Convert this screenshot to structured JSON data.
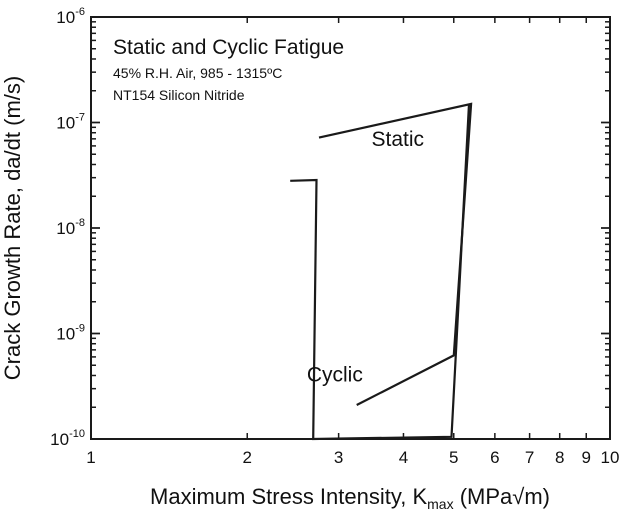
{
  "chart_data": {
    "type": "area",
    "title": "Static and Cyclic Fatigue",
    "subtitle_lines": [
      "45% R.H. Air, 985 - 1315ºC",
      "NT154 Silicon Nitride"
    ],
    "ylabel": "Crack Growth Rate, da/dt (m/s)",
    "xlabel": {
      "prefix": "Maximum Stress Intensity, K",
      "subscript": "max",
      "unit": " (MPa√m)"
    },
    "x_scale": "log",
    "y_scale": "log",
    "xlim": [
      1,
      10
    ],
    "ylim": [
      1e-10,
      1e-06
    ],
    "x_ticklabels": [
      {
        "value": 1,
        "label": "1"
      },
      {
        "value": 2,
        "label": "2"
      },
      {
        "value": 3,
        "label": "3"
      },
      {
        "value": 4,
        "label": "4"
      },
      {
        "value": 5,
        "label": "5"
      },
      {
        "value": 6,
        "label": "6"
      },
      {
        "value": 7,
        "label": "7"
      },
      {
        "value": 8,
        "label": "8"
      },
      {
        "value": 9,
        "label": "9"
      },
      {
        "value": 10,
        "label": "10"
      }
    ],
    "y_ticklabels": [
      {
        "value": 1e-10,
        "base": "10",
        "exp": "-10"
      },
      {
        "value": 1e-09,
        "base": "10",
        "exp": "-9"
      },
      {
        "value": 1e-08,
        "base": "10",
        "exp": "-8"
      },
      {
        "value": 1e-07,
        "base": "10",
        "exp": "-7"
      },
      {
        "value": 1e-06,
        "base": "10",
        "exp": "-6"
      }
    ],
    "grid": false,
    "regions": [
      {
        "name": "Static",
        "label_at": [
          3.9,
          6e-08
        ],
        "points": [
          [
            2.75,
            7.2e-08
          ],
          [
            5.4,
            1.5e-07
          ],
          [
            5.0,
            6.2e-10
          ],
          [
            3.25,
            2.1e-10
          ]
        ]
      },
      {
        "name": "Cyclic",
        "label_at": [
          2.95,
          3.5e-10
        ],
        "points": [
          [
            2.42,
            2.8e-08
          ],
          [
            2.72,
            2.85e-08
          ],
          [
            2.68,
            1e-10
          ],
          [
            4.95,
            1.05e-10
          ],
          [
            5.35,
            1.5e-07
          ]
        ]
      }
    ]
  }
}
